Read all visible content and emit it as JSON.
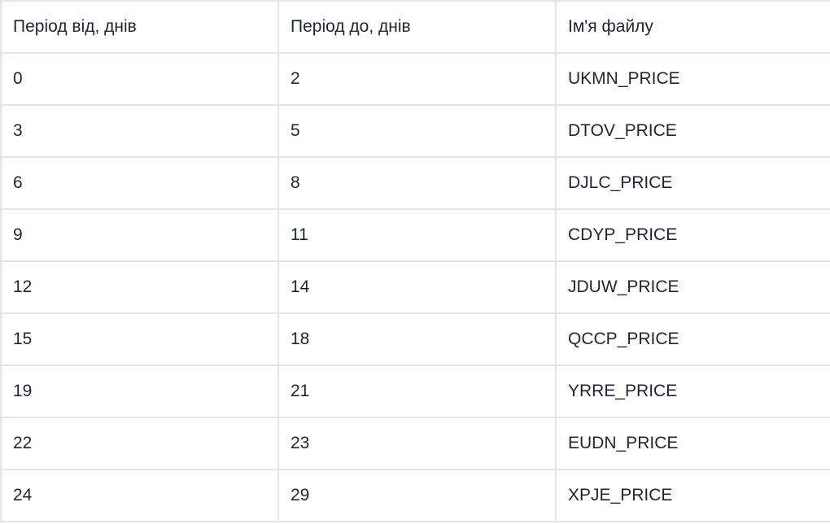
{
  "table": {
    "headers": [
      "Період від, днів",
      "Період до, днів",
      "Ім'я файлу"
    ],
    "rows": [
      [
        "0",
        "2",
        "UKMN_PRICE"
      ],
      [
        "3",
        "5",
        "DTOV_PRICE"
      ],
      [
        "6",
        "8",
        "DJLC_PRICE"
      ],
      [
        "9",
        "11",
        "CDYP_PRICE"
      ],
      [
        "12",
        "14",
        "JDUW_PRICE"
      ],
      [
        "15",
        "18",
        "QCCP_PRICE"
      ],
      [
        "19",
        "21",
        "YRRE_PRICE"
      ],
      [
        "22",
        "23",
        "EUDN_PRICE"
      ],
      [
        "24",
        "29",
        "XPJE_PRICE"
      ]
    ]
  },
  "colors": {
    "text": "#1f2633",
    "border": "#e3e5e8",
    "background": "#ffffff"
  }
}
